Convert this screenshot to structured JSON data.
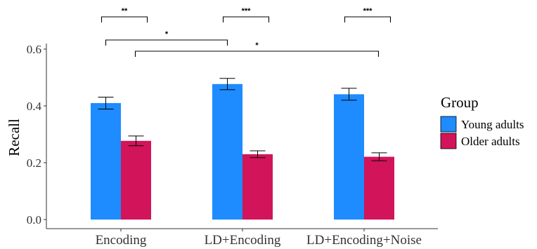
{
  "chart_data": {
    "type": "bar",
    "categories": [
      "Encoding",
      "LD+Encoding",
      "LD+Encoding+Noise"
    ],
    "series": [
      {
        "name": "Young adults",
        "color": "#1e8bff",
        "values": [
          0.41,
          0.477,
          0.441
        ],
        "errors": [
          0.021,
          0.02,
          0.021
        ]
      },
      {
        "name": "Older adults",
        "color": "#d2145a",
        "values": [
          0.277,
          0.23,
          0.221
        ],
        "errors": [
          0.017,
          0.012,
          0.014
        ]
      }
    ],
    "ylabel": "Recall",
    "xlabel": "",
    "ylim": [
      0,
      0.6
    ],
    "yticks": [
      "0.0",
      "0.2",
      "0.4",
      "0.6"
    ],
    "grid": false,
    "legend": {
      "title": "Group",
      "placement": "right"
    },
    "significance": [
      {
        "label": "**",
        "kind": "within",
        "category": "Encoding"
      },
      {
        "label": "***",
        "kind": "within",
        "category": "LD+Encoding"
      },
      {
        "label": "***",
        "kind": "within",
        "category": "LD+Encoding+Noise"
      },
      {
        "label": "*",
        "kind": "between",
        "from": "Encoding",
        "to": "LD+Encoding",
        "series": "Young adults"
      },
      {
        "label": "*",
        "kind": "between",
        "from": "Encoding",
        "to": "LD+Encoding+Noise",
        "series": "Older adults"
      }
    ]
  }
}
